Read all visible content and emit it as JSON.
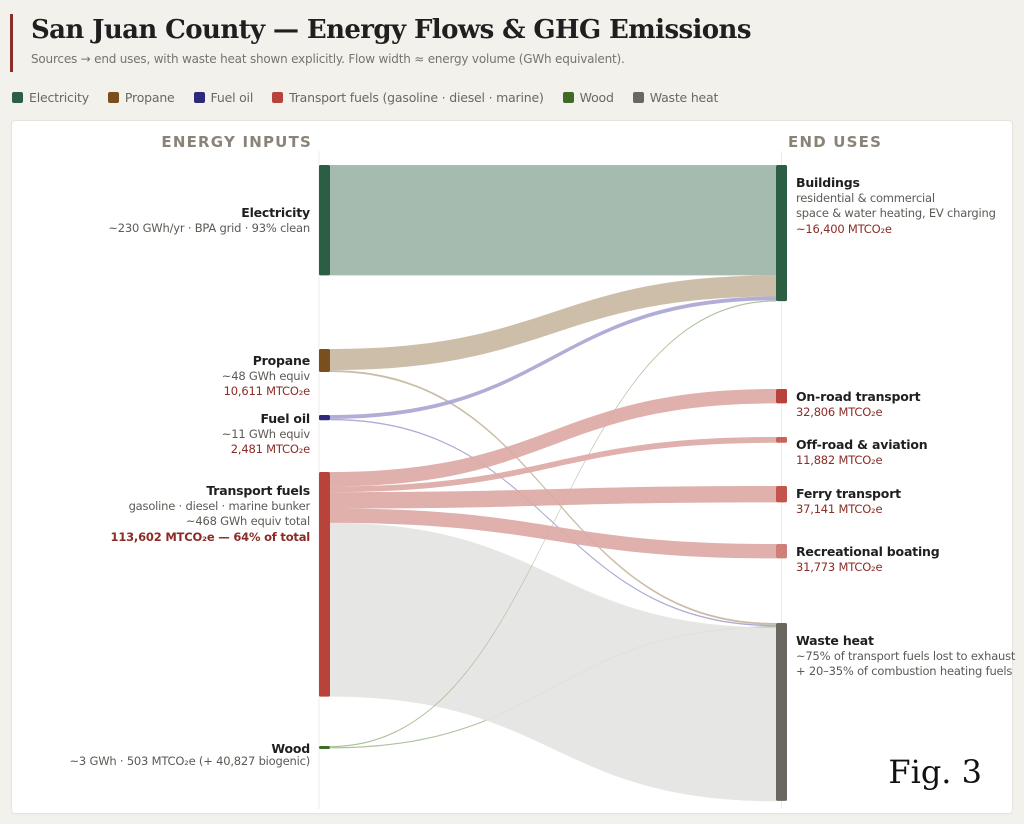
{
  "header": {
    "title": "San Juan County — Energy Flows & GHG Emissions",
    "subtitle": "Sources → end uses, with waste heat shown explicitly. Flow width ≈ energy volume (GWh equivalent)."
  },
  "legend": [
    {
      "label": "Electricity",
      "color": "#2b5e43"
    },
    {
      "label": "Propane",
      "color": "#7a4e1f"
    },
    {
      "label": "Fuel oil",
      "color": "#2e2a7a"
    },
    {
      "label": "Transport fuels (gasoline · diesel · marine)",
      "color": "#b8433a"
    },
    {
      "label": "Wood",
      "color": "#3f6b26"
    },
    {
      "label": "Waste heat",
      "color": "#6b6660"
    }
  ],
  "columns": {
    "left": "ENERGY INPUTS",
    "right": "END USES"
  },
  "figure_label": "Fig. 3",
  "chart_data": {
    "type": "sankey",
    "title": "San Juan County — Energy Flows & GHG Emissions",
    "units": "GWh equivalent",
    "sources": [
      {
        "id": "electricity",
        "name": "Electricity",
        "lines": [
          "~230 GWh/yr · BPA grid · 93% clean"
        ],
        "emissions": "",
        "value": 230,
        "color": "#2b5e43",
        "link_color": "#9db5a8"
      },
      {
        "id": "propane",
        "name": "Propane",
        "lines": [
          "~48 GWh equiv"
        ],
        "emissions": "10,611 MTCO₂e",
        "value": 48,
        "color": "#7a4e1f",
        "link_color": "#c9b8a2"
      },
      {
        "id": "fueloil",
        "name": "Fuel oil",
        "lines": [
          "~11 GWh equiv"
        ],
        "emissions": "2,481 MTCO₂e",
        "value": 11,
        "color": "#2e2a7a",
        "link_color": "#aaa6d3"
      },
      {
        "id": "transport",
        "name": "Transport fuels",
        "lines": [
          "gasoline · diesel · marine bunker",
          "~468 GWh equiv total"
        ],
        "emissions": "113,602 MTCO₂e — 64% of total",
        "value": 468,
        "color": "#b8433a",
        "link_color": "#dca9a5"
      },
      {
        "id": "wood",
        "name": "Wood",
        "lines": [],
        "inline_detail": "~3 GWh · 503 MTCO₂e (+ 40,827 biogenic)",
        "value": 3,
        "color": "#3f6b26",
        "link_color": "#a9bf98"
      }
    ],
    "targets": [
      {
        "id": "buildings",
        "name": "Buildings",
        "lines": [
          "residential & commercial",
          "space & water heating, EV charging"
        ],
        "emissions": "~16,400 MTCO₂e",
        "color": "#2b5e43"
      },
      {
        "id": "onroad",
        "name": "On-road transport",
        "lines": [],
        "emissions": "32,806 MTCO₂e",
        "color": "#b8433a"
      },
      {
        "id": "offroad",
        "name": "Off-road & aviation",
        "lines": [],
        "emissions": "11,882 MTCO₂e",
        "color": "#c9625a"
      },
      {
        "id": "ferry",
        "name": "Ferry transport",
        "lines": [],
        "emissions": "37,141 MTCO₂e",
        "color": "#c4554d"
      },
      {
        "id": "recboat",
        "name": "Recreational boating",
        "lines": [],
        "emissions": "31,773 MTCO₂e",
        "color": "#cf7f77"
      },
      {
        "id": "waste",
        "name": "Waste heat",
        "lines": [
          "~75% of transport fuels lost to exhaust",
          "+ 20–35% of combustion heating fuels"
        ],
        "emissions": "",
        "color": "#6b6660"
      }
    ],
    "links": [
      {
        "source": "electricity",
        "target": "buildings",
        "value": 230
      },
      {
        "source": "propane",
        "target": "buildings",
        "value": 44
      },
      {
        "source": "propane",
        "target": "waste",
        "value": 4
      },
      {
        "source": "fueloil",
        "target": "buildings",
        "value": 8
      },
      {
        "source": "fueloil",
        "target": "waste",
        "value": 3
      },
      {
        "source": "wood",
        "target": "buildings",
        "value": 1.5
      },
      {
        "source": "wood",
        "target": "waste",
        "value": 1.5
      },
      {
        "source": "transport",
        "target": "onroad",
        "value": 30
      },
      {
        "source": "transport",
        "target": "offroad",
        "value": 12
      },
      {
        "source": "transport",
        "target": "ferry",
        "value": 34
      },
      {
        "source": "transport",
        "target": "recboat",
        "value": 30
      },
      {
        "source": "transport",
        "target": "waste",
        "value": 362
      }
    ]
  }
}
